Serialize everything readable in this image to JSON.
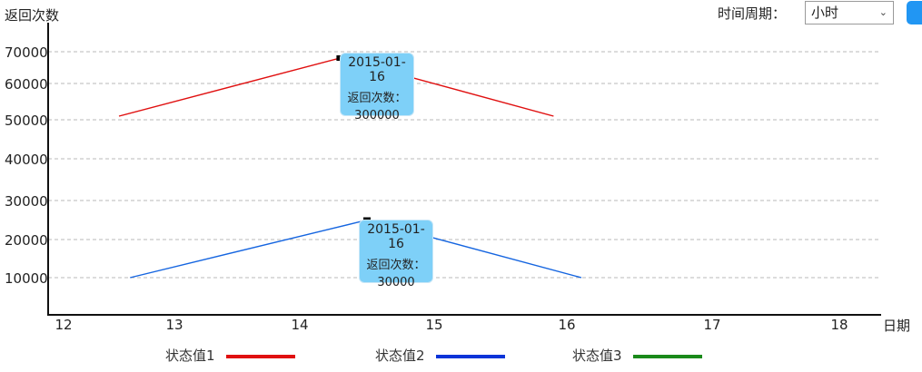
{
  "chart_data": {
    "type": "line",
    "xlabel": "日期",
    "ylabel": "返回次数",
    "x_ticks": [
      "12",
      "13",
      "14",
      "15",
      "16",
      "17",
      "18"
    ],
    "y_ticks": [
      "70000",
      "60000",
      "50000",
      "40000",
      "30000",
      "20000",
      "10000"
    ],
    "series": [
      {
        "name": "状态值1",
        "color": "#e01010",
        "points": [
          {
            "x": 12.5,
            "y": 51000
          },
          {
            "x": 14.3,
            "y": 68000
          },
          {
            "x": 15.9,
            "y": 51000
          }
        ]
      },
      {
        "name": "状态值2",
        "color": "#1565e0",
        "points": [
          {
            "x": 12.6,
            "y": 10000
          },
          {
            "x": 14.5,
            "y": 25000
          },
          {
            "x": 16.1,
            "y": 10000
          }
        ]
      },
      {
        "name": "状态值3",
        "color": "#1a8a1a",
        "points": []
      }
    ],
    "tooltips": [
      {
        "date": "2015-01-16",
        "label": "返回次数：",
        "value": "300000"
      },
      {
        "date": "2015-01-16",
        "label": "返回次数：",
        "value": "30000"
      }
    ],
    "grid": true
  },
  "controls": {
    "period_label": "时间周期：",
    "period_value": "小时"
  }
}
